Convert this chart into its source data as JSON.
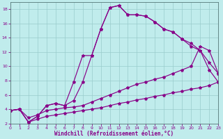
{
  "xlabel": "Windchill (Refroidissement éolien,°C)",
  "bg_color": "#c0ecec",
  "line_color": "#880088",
  "grid_color": "#99cccc",
  "xlim": [
    0,
    23
  ],
  "ylim": [
    2,
    19
  ],
  "xticks": [
    0,
    1,
    2,
    3,
    4,
    5,
    6,
    7,
    8,
    9,
    10,
    11,
    12,
    13,
    14,
    15,
    16,
    17,
    18,
    19,
    20,
    21,
    22,
    23
  ],
  "yticks": [
    2,
    4,
    6,
    8,
    10,
    12,
    14,
    16,
    18
  ],
  "line1_x": [
    0,
    1,
    2,
    3,
    4,
    5,
    6,
    7,
    8,
    9,
    10,
    11,
    12,
    13,
    14,
    15,
    16,
    17,
    18,
    19,
    20,
    21,
    22,
    23
  ],
  "line1_y": [
    3.8,
    4.0,
    2.2,
    3.0,
    4.5,
    4.8,
    4.5,
    7.8,
    11.5,
    11.5,
    15.2,
    18.2,
    18.5,
    17.2,
    17.2,
    17.0,
    16.2,
    15.2,
    14.8,
    13.8,
    12.8,
    12.2,
    10.5,
    9.0
  ],
  "line2_x": [
    0,
    1,
    2,
    3,
    4,
    5,
    6,
    7,
    8,
    9,
    10,
    11,
    12,
    13,
    14,
    15,
    16,
    17,
    18,
    19,
    20,
    21,
    22,
    23
  ],
  "line2_y": [
    3.8,
    4.0,
    2.2,
    3.0,
    4.5,
    4.8,
    4.5,
    5.2,
    7.8,
    11.5,
    15.2,
    18.2,
    18.5,
    17.2,
    17.2,
    17.0,
    16.2,
    15.2,
    14.8,
    13.8,
    13.2,
    12.2,
    9.5,
    7.8
  ],
  "line3_x": [
    0,
    1,
    2,
    3,
    4,
    5,
    6,
    7,
    8,
    9,
    10,
    11,
    12,
    13,
    14,
    15,
    16,
    17,
    18,
    19,
    20,
    21,
    22,
    23
  ],
  "line3_y": [
    3.8,
    4.0,
    2.8,
    3.2,
    3.8,
    4.0,
    4.2,
    4.3,
    4.5,
    5.0,
    5.5,
    6.0,
    6.5,
    7.0,
    7.5,
    7.8,
    8.2,
    8.5,
    9.0,
    9.5,
    10.0,
    12.8,
    12.2,
    9.0
  ],
  "line4_x": [
    0,
    1,
    2,
    3,
    4,
    5,
    6,
    7,
    8,
    9,
    10,
    11,
    12,
    13,
    14,
    15,
    16,
    17,
    18,
    19,
    20,
    21,
    22,
    23
  ],
  "line4_y": [
    3.8,
    4.0,
    2.2,
    2.6,
    3.0,
    3.2,
    3.4,
    3.6,
    3.8,
    4.0,
    4.2,
    4.5,
    4.8,
    5.0,
    5.3,
    5.5,
    5.8,
    6.0,
    6.3,
    6.5,
    6.8,
    7.0,
    7.3,
    7.8
  ]
}
